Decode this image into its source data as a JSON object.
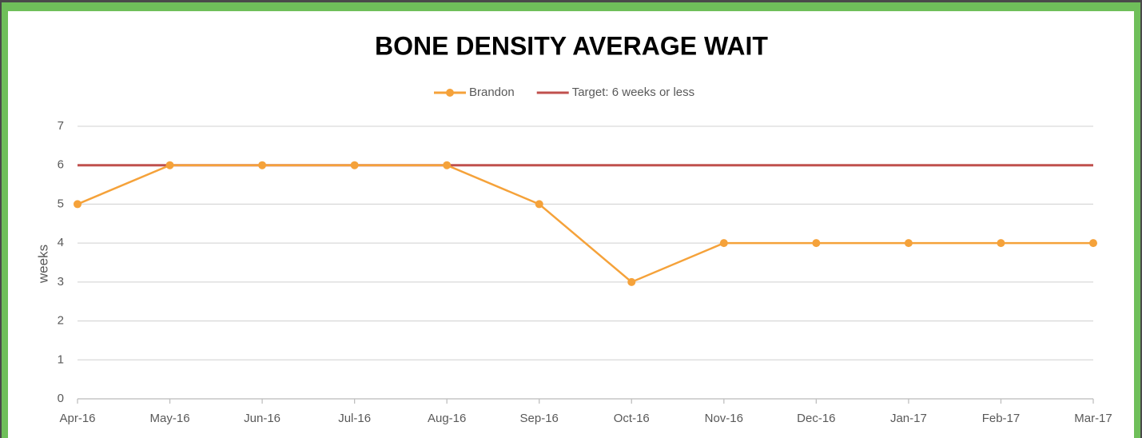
{
  "chart_data": {
    "type": "line",
    "title": "BONE DENSITY AVERAGE WAIT",
    "y_label": "weeks",
    "categories": [
      "Apr-16",
      "May-16",
      "Jun-16",
      "Jul-16",
      "Aug-16",
      "Sep-16",
      "Oct-16",
      "Nov-16",
      "Dec-16",
      "Jan-17",
      "Feb-17",
      "Mar-17"
    ],
    "series": [
      {
        "name": "Brandon",
        "color": "#f5a23a",
        "markers": true,
        "values": [
          5,
          6,
          6,
          6,
          6,
          5,
          3,
          4,
          4,
          4,
          4,
          4
        ]
      },
      {
        "name": "Target: 6 weeks or less",
        "color": "#c0504d",
        "markers": false,
        "values": [
          6,
          6,
          6,
          6,
          6,
          6,
          6,
          6,
          6,
          6,
          6,
          6
        ]
      }
    ],
    "ylim": [
      0,
      7
    ],
    "yticks": [
      0,
      1,
      2,
      3,
      4,
      5,
      6,
      7
    ],
    "grid": true,
    "legend": "top"
  }
}
